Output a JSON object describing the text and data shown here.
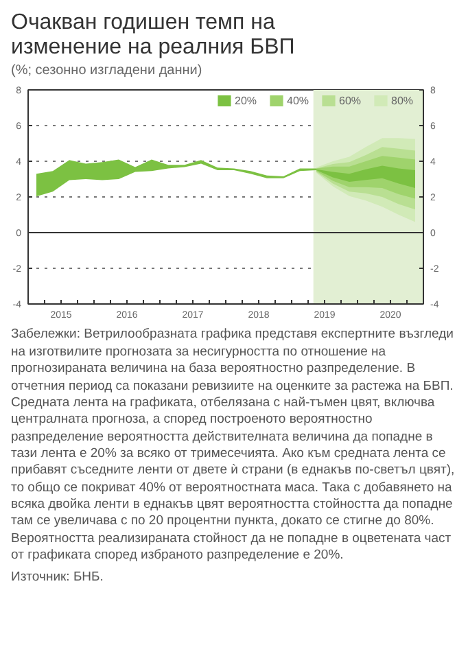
{
  "chart_data": {
    "type": "line",
    "title": "Очакван годишен темп на изменение на реалния БВП",
    "subtitle": "(%; сезонно изгладени данни)",
    "xlim": [
      2015,
      2021
    ],
    "xticks": [
      {
        "value": 2015,
        "label": null
      },
      {
        "value": 2015.25,
        "label": null
      },
      {
        "value": 2015.5,
        "label": "2015"
      },
      {
        "value": 2015.75,
        "label": null
      },
      {
        "value": 2016,
        "label": null
      },
      {
        "value": 2016.25,
        "label": null
      },
      {
        "value": 2016.5,
        "label": "2016"
      },
      {
        "value": 2016.75,
        "label": null
      },
      {
        "value": 2017,
        "label": null
      },
      {
        "value": 2017.25,
        "label": null
      },
      {
        "value": 2017.5,
        "label": "2017"
      },
      {
        "value": 2017.75,
        "label": null
      },
      {
        "value": 2018,
        "label": null
      },
      {
        "value": 2018.25,
        "label": null
      },
      {
        "value": 2018.5,
        "label": "2018"
      },
      {
        "value": 2018.75,
        "label": null
      },
      {
        "value": 2019,
        "label": null
      },
      {
        "value": 2019.25,
        "label": null
      },
      {
        "value": 2019.5,
        "label": "2019"
      },
      {
        "value": 2019.75,
        "label": null
      },
      {
        "value": 2020,
        "label": null
      },
      {
        "value": 2020.25,
        "label": null
      },
      {
        "value": 2020.5,
        "label": "2020"
      },
      {
        "value": 2020.75,
        "label": null
      },
      {
        "value": 2021,
        "label": null
      }
    ],
    "ylim": [
      -4,
      8
    ],
    "yticks": [
      -4,
      -2,
      0,
      2,
      4,
      6,
      8
    ],
    "y2lim": [
      -4,
      8
    ],
    "y2ticks": [
      -4,
      -2,
      0,
      2,
      4,
      6,
      8
    ],
    "grid": "y",
    "legend": "top right",
    "ref_lines": [
      {
        "axis": "y",
        "value": 0,
        "color": "#333333",
        "line_style": "solid"
      }
    ],
    "bands": [
      {
        "axis": "x",
        "from": 2019.33,
        "to": 2021,
        "color": "#e2efd3"
      }
    ],
    "series": [
      {
        "color": "#7cc142",
        "x": [
          2015.125,
          2015.375,
          2015.625,
          2015.875,
          2016.125,
          2016.375,
          2016.625,
          2016.875,
          2017.125,
          2017.375,
          2017.625,
          2017.875,
          2018.125,
          2018.375,
          2018.625,
          2018.875,
          2019.125,
          2019.375
        ],
        "values": [
          null,
          null,
          null,
          null,
          null,
          null,
          null,
          null,
          null,
          null,
          null,
          null,
          null,
          null,
          null,
          null,
          null,
          null
        ],
        "lower": [
          2.03,
          2.3,
          2.94,
          3.0,
          2.94,
          3.0,
          3.4,
          3.45,
          3.6,
          3.67,
          3.87,
          3.5,
          3.5,
          3.3,
          3.05,
          3.05,
          3.45,
          3.5
        ],
        "upper": [
          3.3,
          3.45,
          4.07,
          3.87,
          3.95,
          4.1,
          3.67,
          4.1,
          3.8,
          3.8,
          4.07,
          3.64,
          3.6,
          3.45,
          3.2,
          3.15,
          3.6,
          3.6
        ]
      },
      {
        "name": "20%",
        "color": "#7cc142",
        "x": [
          2019.375,
          2019.625,
          2019.875,
          2020.125,
          2020.375,
          2020.625,
          2020.875
        ],
        "values": [
          null,
          null,
          null,
          null,
          null,
          null,
          null
        ],
        "lower": [
          3.5,
          3.1,
          2.85,
          2.95,
          3.05,
          2.75,
          2.5
        ],
        "upper": [
          3.55,
          3.4,
          3.3,
          3.55,
          3.75,
          3.6,
          3.5
        ]
      },
      {
        "name": "40%",
        "color": "#9fd36c",
        "x": [
          2019.375,
          2019.625,
          2019.875,
          2020.125,
          2020.375,
          2020.625,
          2020.875
        ],
        "values": [
          null,
          null,
          null,
          null,
          null,
          null,
          null
        ],
        "lower": [
          3.45,
          2.9,
          2.55,
          2.55,
          2.5,
          2.15,
          1.9
        ],
        "upper": [
          3.6,
          3.7,
          3.7,
          4.0,
          4.3,
          4.2,
          4.1
        ]
      },
      {
        "name": "60%",
        "color": "#b9df92",
        "x": [
          2019.375,
          2019.625,
          2019.875,
          2020.125,
          2020.375,
          2020.625,
          2020.875
        ],
        "values": [
          null,
          null,
          null,
          null,
          null,
          null,
          null
        ],
        "lower": [
          3.4,
          2.75,
          2.3,
          2.2,
          2.0,
          1.6,
          1.3
        ],
        "upper": [
          3.6,
          3.85,
          3.95,
          4.35,
          4.8,
          4.7,
          4.6
        ]
      },
      {
        "name": "80%",
        "color": "#d1eab7",
        "x": [
          2019.375,
          2019.625,
          2019.875,
          2020.125,
          2020.375,
          2020.625,
          2020.875
        ],
        "values": [
          null,
          null,
          null,
          null,
          null,
          null,
          null
        ],
        "lower": [
          3.35,
          2.6,
          2.05,
          1.8,
          1.45,
          1.0,
          0.6
        ],
        "upper": [
          3.65,
          4.0,
          4.25,
          4.8,
          5.3,
          5.3,
          5.25
        ]
      }
    ],
    "annotations": [
      "Забележки: Ветрилообразната графика представя експертните възгледи на изготвилите прогнозата за несигурността по отношение на прогнозираната величина на база вероятностно разпределение. В отчетния период са показани ревизиите на оценките за растежа на БВП. Средната лента на графиката, отбелязана с най-тъмен цвят, включва централната прогноза, а според построеното вероятностно разпределение вероятността действителната величина да попадне в тази лента е 20% за всяко от тримесечията. Ако към средната лента се прибавят съседните ленти от двете ѝ страни (в еднакъв по-светъл цвят), то общо се покриват 40% от вероятностната маса. Така с добавянето на всяка двойка ленти в еднакъв цвят вероятността стойността да попадне там се увеличава с по 20 процентни пункта, докато се стигне до 80%. Вероятността реализираната стойност да не попадне в оцветената част от графиката според избраното разпределение е 20%.",
      "Източник: БНБ."
    ]
  }
}
